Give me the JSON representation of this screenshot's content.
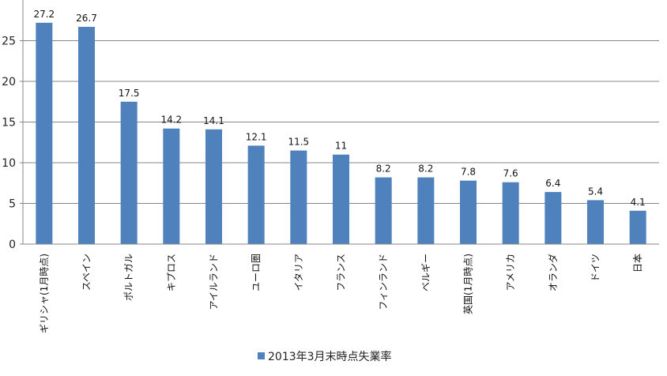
{
  "chart_data": {
    "type": "bar",
    "categories": [
      "ギリシャ(1月時点)",
      "スペイン",
      "ポルトガル",
      "キプロス",
      "アイルランド",
      "ユーロ圏",
      "イタリア",
      "フランス",
      "フィンランド",
      "ベルギー",
      "英国(1月時点)",
      "アメリカ",
      "オランダ",
      "ドイツ",
      "日本"
    ],
    "series": [
      {
        "name": "2013年3月末時点失業率",
        "values": [
          27.2,
          26.7,
          17.5,
          14.2,
          14.1,
          12.1,
          11.5,
          11,
          8.2,
          8.2,
          7.8,
          7.6,
          6.4,
          5.4,
          4.1
        ],
        "color": "#4F81BD"
      }
    ],
    "data_labels": [
      "27.2",
      "26.7",
      "17.5",
      "14.2",
      "14.1",
      "12.1",
      "11.5",
      "11",
      "8.2",
      "8.2",
      "7.8",
      "7.6",
      "6.4",
      "5.4",
      "4.1"
    ],
    "y_ticks": [
      "0",
      "5",
      "10",
      "15",
      "20",
      "25"
    ],
    "ylim": [
      0,
      30
    ],
    "title": "",
    "xlabel": "",
    "ylabel": "",
    "grid": true,
    "gridline_color": "#878787",
    "legend_position": "bottom"
  }
}
